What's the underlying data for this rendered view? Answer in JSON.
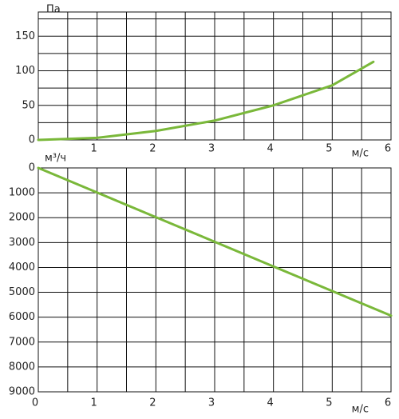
{
  "chart_data": [
    {
      "type": "line",
      "y_label": "Па",
      "x_label": "м/с",
      "x": [
        0,
        1,
        2,
        3,
        4,
        5,
        5.7
      ],
      "series": [
        {
          "color": "#7ab83a",
          "values": [
            0,
            3,
            13,
            28,
            50,
            79,
            113
          ]
        }
      ],
      "xlim": [
        0,
        6
      ],
      "xticks": [
        1,
        2,
        3,
        4,
        5,
        6
      ],
      "ylim": [
        0,
        185
      ],
      "yticks": [
        0,
        50,
        100,
        150
      ],
      "grid": true
    },
    {
      "type": "line",
      "y_label": "м³/ч",
      "x_label": "м/с",
      "x": [
        0,
        1,
        2,
        3,
        4,
        5,
        6
      ],
      "series": [
        {
          "color": "#7ab83a",
          "values": [
            0,
            990,
            1980,
            2970,
            3960,
            4950,
            5940
          ]
        }
      ],
      "xlim": [
        0,
        6
      ],
      "xticks": [
        0,
        1,
        2,
        3,
        4,
        5,
        6
      ],
      "ylim": [
        0,
        9000
      ],
      "yticks": [
        0,
        1000,
        2000,
        3000,
        4000,
        5000,
        6000,
        7000,
        8000,
        9000
      ],
      "y_reversed": true,
      "grid": true
    }
  ]
}
